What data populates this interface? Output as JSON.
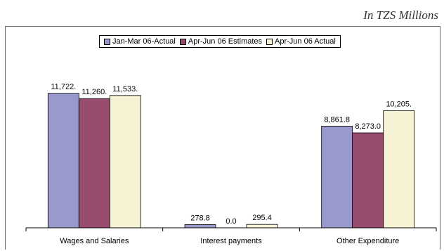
{
  "unit_note": "In TZS Millions",
  "chart_data": {
    "type": "bar",
    "title": "",
    "xlabel": "",
    "ylabel": "",
    "ylim": [
      0,
      12500
    ],
    "categories": [
      "Wages and Salaries",
      "Interest payments",
      "Other Expenditure"
    ],
    "series": [
      {
        "name": "Jan-Mar 06-Actual",
        "color": "#9999cc",
        "values": [
          11722,
          278.8,
          8861.8
        ],
        "labels": [
          "11,722.",
          "278.8",
          "8,861.8"
        ]
      },
      {
        "name": "Apr-Jun 06 Estimates",
        "color": "#994d6e",
        "values": [
          11260,
          0.0,
          8273.0
        ],
        "labels": [
          "11,260.",
          "0.0",
          "8,273.0"
        ]
      },
      {
        "name": "Apr-Jun 06 Actual",
        "color": "#f5f3d4",
        "values": [
          11533,
          295.4,
          10205
        ],
        "labels": [
          "11,533.",
          "295.4",
          "10,205."
        ]
      }
    ],
    "legend_position": "top-center",
    "grid": false
  }
}
